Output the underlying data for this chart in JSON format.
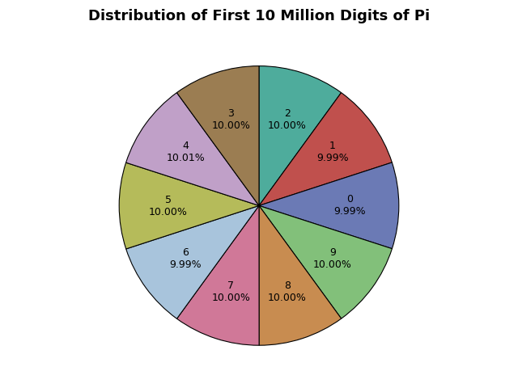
{
  "title": "Distribution of First 10 Million Digits of Pi",
  "labels": [
    "0",
    "1",
    "2",
    "3",
    "4",
    "5",
    "6",
    "7",
    "8",
    "9"
  ],
  "values": [
    9.99,
    9.99,
    10.0,
    10.0,
    10.01,
    10.0,
    9.99,
    10.0,
    10.0,
    10.0
  ],
  "colors": [
    "#6b7ab5",
    "#c0504d",
    "#4eac9c",
    "#9b7d52",
    "#c0a0c8",
    "#b5bb5a",
    "#a8c4dc",
    "#d07898",
    "#c88c50",
    "#82c07a"
  ],
  "startangle": 90,
  "title_fontsize": 13,
  "label_fontsize": 9,
  "background_color": "#ffffff"
}
